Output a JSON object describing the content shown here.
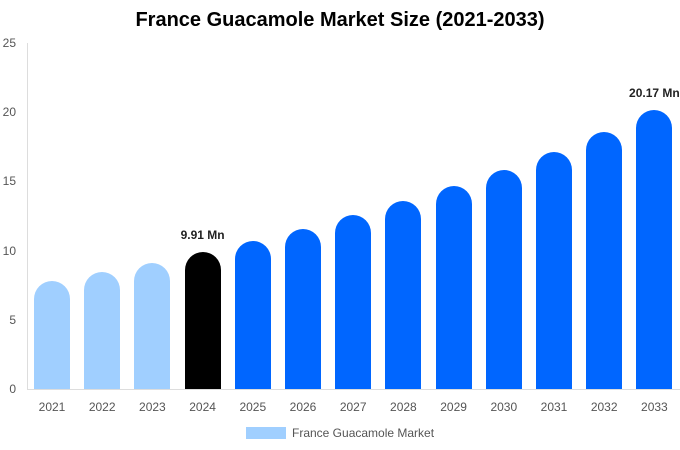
{
  "chart_data": {
    "type": "bar",
    "title": "France Guacamole Market Size (2021-2033)",
    "xlabel": "",
    "ylabel": "",
    "ylim": [
      0,
      25
    ],
    "yticks": [
      0,
      5,
      10,
      15,
      20,
      25
    ],
    "grid": false,
    "legend_position": "bottom",
    "categories": [
      "2021",
      "2022",
      "2023",
      "2024",
      "2025",
      "2026",
      "2027",
      "2028",
      "2029",
      "2030",
      "2031",
      "2032",
      "2033"
    ],
    "series": [
      {
        "name": "France Guacamole Market",
        "values": [
          7.8,
          8.45,
          9.1,
          9.91,
          10.7,
          11.55,
          12.55,
          13.55,
          14.65,
          15.8,
          17.1,
          18.55,
          20.17
        ],
        "colors": [
          "#a0cfff",
          "#a0cfff",
          "#a0cfff",
          "#000000",
          "#0066ff",
          "#0066ff",
          "#0066ff",
          "#0066ff",
          "#0066ff",
          "#0066ff",
          "#0066ff",
          "#0066ff",
          "#0066ff"
        ]
      }
    ],
    "annotations": [
      {
        "category": "2024",
        "text": "9.91 Mn"
      },
      {
        "category": "2033",
        "text": "20.17 Mn"
      }
    ]
  },
  "legend": {
    "label": "France Guacamole Market",
    "color": "#a0cfff"
  }
}
